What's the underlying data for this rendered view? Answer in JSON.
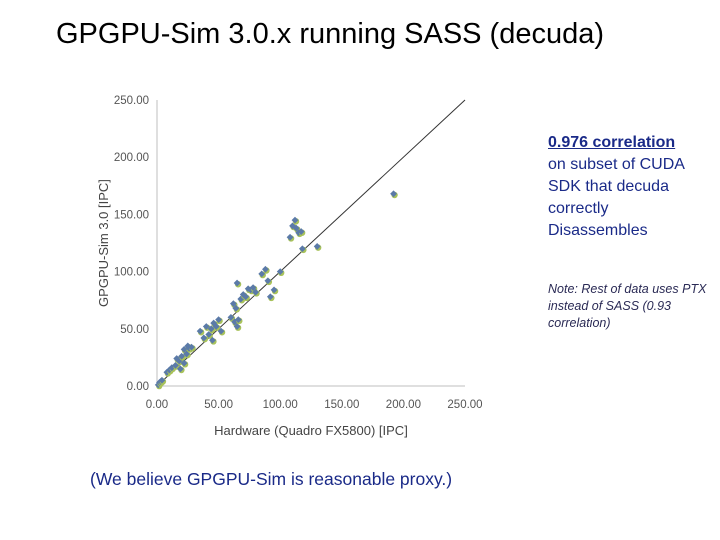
{
  "slide": {
    "title": "GPGPU-Sim 3.0.x running SASS (decuda)",
    "correlation_headline": "0.976 correlation",
    "correlation_body": [
      "on subset of CUDA",
      "SDK that decuda",
      "correctly",
      "Disassembles"
    ],
    "note": "Note: Rest of data uses PTX instead of SASS (0.93 correlation)",
    "footer": "(We believe GPGPU-Sim is reasonable proxy.)"
  },
  "chart_data": {
    "type": "scatter",
    "xlabel": "Hardware (Quadro FX5800)  [IPC]",
    "ylabel": "GPGPU-Sim  3.0  [IPC]",
    "xlim": [
      0,
      250
    ],
    "ylim": [
      0,
      250
    ],
    "xticks": [
      "0.00",
      "50.00",
      "100.00",
      "150.00",
      "200.00",
      "250.00"
    ],
    "yticks": [
      "0.00",
      "50.00",
      "100.00",
      "150.00",
      "200.00",
      "250.00"
    ],
    "reference_line": "y = x",
    "grid": false,
    "colors": {
      "marker": "#5b7aa8",
      "marker_shadow": "#a8c25a",
      "reference_line": "#333333"
    },
    "points": [
      [
        1,
        1
      ],
      [
        2,
        3
      ],
      [
        3,
        4
      ],
      [
        4,
        5
      ],
      [
        8,
        12
      ],
      [
        10,
        14
      ],
      [
        12,
        16
      ],
      [
        15,
        18
      ],
      [
        16,
        24
      ],
      [
        18,
        22
      ],
      [
        19,
        15
      ],
      [
        20,
        26
      ],
      [
        22,
        20
      ],
      [
        22,
        32
      ],
      [
        24,
        28
      ],
      [
        25,
        35
      ],
      [
        26,
        33
      ],
      [
        28,
        34
      ],
      [
        35,
        48
      ],
      [
        38,
        42
      ],
      [
        40,
        52
      ],
      [
        42,
        45
      ],
      [
        44,
        50
      ],
      [
        45,
        40
      ],
      [
        46,
        55
      ],
      [
        48,
        52
      ],
      [
        50,
        58
      ],
      [
        52,
        48
      ],
      [
        60,
        60
      ],
      [
        62,
        72
      ],
      [
        63,
        56
      ],
      [
        64,
        68
      ],
      [
        65,
        90
      ],
      [
        65,
        52
      ],
      [
        66,
        58
      ],
      [
        68,
        76
      ],
      [
        70,
        80
      ],
      [
        72,
        78
      ],
      [
        74,
        85
      ],
      [
        76,
        84
      ],
      [
        78,
        86
      ],
      [
        80,
        82
      ],
      [
        85,
        98
      ],
      [
        88,
        102
      ],
      [
        90,
        92
      ],
      [
        92,
        78
      ],
      [
        95,
        84
      ],
      [
        100,
        100
      ],
      [
        108,
        130
      ],
      [
        110,
        140
      ],
      [
        112,
        145
      ],
      [
        113,
        138
      ],
      [
        115,
        134
      ],
      [
        117,
        135
      ],
      [
        118,
        120
      ],
      [
        130,
        122
      ],
      [
        192,
        168
      ]
    ]
  }
}
